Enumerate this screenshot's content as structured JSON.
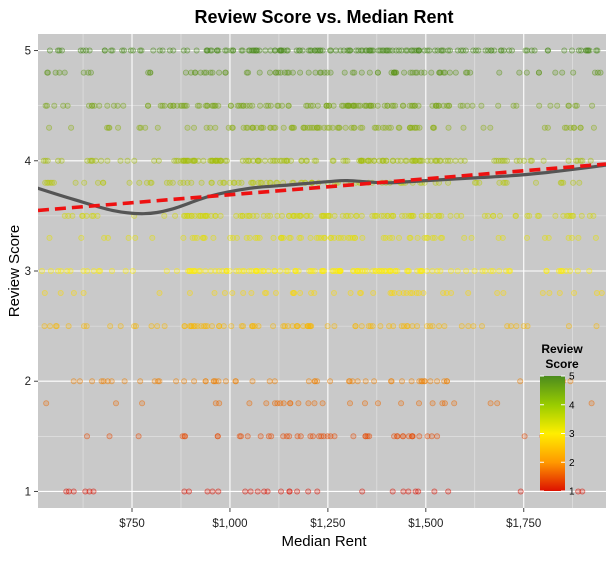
{
  "chart_data": {
    "type": "scatter",
    "title": "Review Score vs. Median Rent",
    "xlabel": "Median Rent",
    "ylabel": "Review Score",
    "xlim": [
      510,
      1960
    ],
    "ylim": [
      0.85,
      5.15
    ],
    "x_ticks": [
      {
        "value": 750,
        "label": "$750"
      },
      {
        "value": 1000,
        "label": "$1,000"
      },
      {
        "value": 1250,
        "label": "$1,250"
      },
      {
        "value": 1500,
        "label": "$1,500"
      },
      {
        "value": 1750,
        "label": "$1,750"
      }
    ],
    "y_ticks": [
      {
        "value": 1,
        "label": "1"
      },
      {
        "value": 2,
        "label": "2"
      },
      {
        "value": 3,
        "label": "3"
      },
      {
        "value": 4,
        "label": "4"
      },
      {
        "value": 5,
        "label": "5"
      }
    ],
    "grid": true,
    "background": "#c9c9c9",
    "point_color_scale": {
      "low": "#dd1100",
      "mid": "#ffee00",
      "high": "#4c8c1e",
      "domain": [
        1,
        5
      ]
    },
    "score_levels": [
      1,
      1.5,
      1.8,
      2,
      2.5,
      2.8,
      3,
      3.3,
      3.5,
      3.8,
      4,
      4.3,
      4.5,
      4.8,
      5
    ],
    "series": [
      {
        "kind": "smooth",
        "color": "#555555",
        "x": [
          510,
          600,
          700,
          780,
          850,
          950,
          1050,
          1150,
          1250,
          1300,
          1400,
          1500,
          1600,
          1700,
          1800,
          1960
        ],
        "values": [
          3.75,
          3.65,
          3.55,
          3.52,
          3.56,
          3.68,
          3.75,
          3.78,
          3.81,
          3.82,
          3.8,
          3.82,
          3.84,
          3.86,
          3.89,
          3.96
        ]
      },
      {
        "kind": "linear",
        "color": "#ee1111",
        "x": [
          510,
          1960
        ],
        "values": [
          3.55,
          3.97
        ]
      }
    ],
    "legend": {
      "title_lines": [
        "Review",
        "Score"
      ],
      "ticks": [
        {
          "value": 1,
          "label": "1"
        },
        {
          "value": 2,
          "label": "2"
        },
        {
          "value": 3,
          "label": "3"
        },
        {
          "value": 4,
          "label": "4"
        },
        {
          "value": 5,
          "label": "5"
        }
      ],
      "position": "bottom-right"
    }
  }
}
